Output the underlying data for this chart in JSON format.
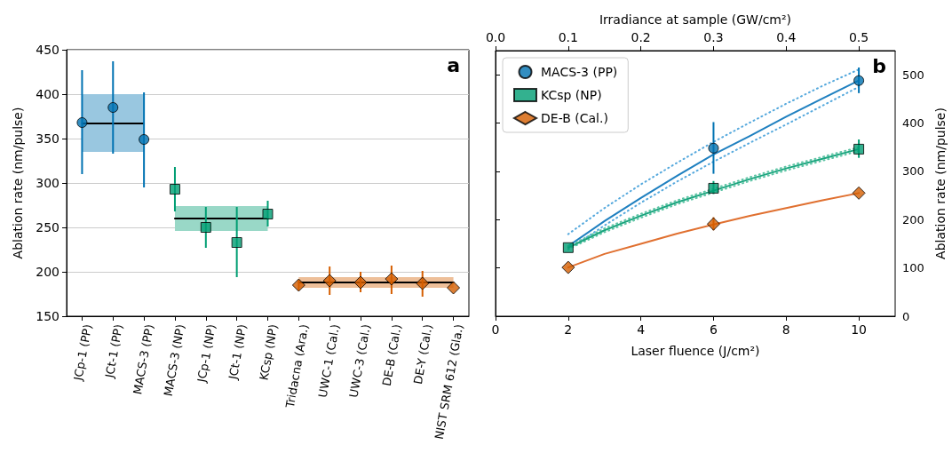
{
  "chart_data": [
    {
      "type": "scatter",
      "ylabel": "Ablation rate (nm/pulse)",
      "categories": [
        "JCp-1 (PP)",
        "JCt-1 (PP)",
        "MACS-3 (PP)",
        "MACS-3 (NP)",
        "JCp-1 (NP)",
        "JCt-1 (NP)",
        "KCsp (NP)",
        "Tridacna (Ara.)",
        "UWC-1 (Cal.)",
        "UWC-3 (Cal.)",
        "DE-B (Cal.)",
        "DE-Y (Cal.)",
        "NIST SRM 612 (Gla.)"
      ],
      "ylim": [
        150,
        450
      ],
      "yticks": [
        150,
        200,
        250,
        300,
        350,
        400,
        450
      ],
      "grid": "y",
      "legend": false,
      "annotations": [
        "a"
      ],
      "series": [
        {
          "marker": "circle",
          "color": "#0072b2",
          "x": [
            "JCp-1 (PP)",
            "JCt-1 (PP)",
            "MACS-3 (PP)"
          ],
          "values": [
            368,
            385,
            349
          ],
          "errors": [
            [
              310,
              427
            ],
            [
              333,
              437
            ],
            [
              295,
              402
            ]
          ]
        },
        {
          "type": "line",
          "marker": "none",
          "color": "#000000",
          "x": [
            "JCp-1 (PP)",
            "MACS-3 (PP)"
          ],
          "values": [
            367,
            367
          ],
          "lower": [
            335,
            335
          ],
          "upper": [
            400,
            400
          ]
        },
        {
          "marker": "square",
          "color": "#009e73",
          "x": [
            "MACS-3 (NP)",
            "JCp-1 (NP)",
            "JCt-1 (NP)",
            "KCsp (NP)"
          ],
          "values": [
            293,
            250,
            233,
            265
          ],
          "errors": [
            [
              268,
              318
            ],
            [
              227,
              273
            ],
            [
              194,
              273
            ],
            [
              251,
              280
            ]
          ]
        },
        {
          "type": "line",
          "marker": "none",
          "color": "#000000",
          "x": [
            "MACS-3 (NP)",
            "KCsp (NP)"
          ],
          "values": [
            260,
            260
          ],
          "lower": [
            246,
            246
          ],
          "upper": [
            274,
            274
          ]
        },
        {
          "marker": "diamond",
          "color": "#d55e00",
          "x": [
            "Tridacna (Ara.)",
            "UWC-1 (Cal.)",
            "UWC-3 (Cal.)",
            "DE-B (Cal.)",
            "DE-Y (Cal.)",
            "NIST SRM 612 (Gla.)"
          ],
          "values": [
            185,
            190,
            188,
            192,
            187,
            182
          ],
          "errors": [
            [
              179,
              191
            ],
            [
              174,
              206
            ],
            [
              177,
              200
            ],
            [
              175,
              207
            ],
            [
              172,
              201
            ],
            null
          ]
        },
        {
          "type": "line",
          "marker": "none",
          "color": "#000000",
          "x": [
            "Tridacna (Ara.)",
            "NIST SRM 612 (Gla.)"
          ],
          "values": [
            188,
            188
          ],
          "lower": [
            182,
            182
          ],
          "upper": [
            194,
            194
          ]
        }
      ]
    },
    {
      "type": "scatter",
      "xlabel": "Laser fluence (J/cm²)",
      "x2label": "Irradiance at sample (GW/cm²)",
      "y2label": "Ablation rate (nm/pulse)",
      "xlim": [
        0,
        11
      ],
      "xticks": [
        0,
        2,
        4,
        6,
        8,
        10
      ],
      "x2lim": [
        0,
        0.55
      ],
      "x2ticks": [
        {
          "value": 0,
          "label": "0.0"
        },
        {
          "value": 0.1,
          "label": "0.1"
        },
        {
          "value": 0.2,
          "label": "0.2"
        },
        {
          "value": 0.3,
          "label": "0.3"
        },
        {
          "value": 0.4,
          "label": "0.4"
        },
        {
          "value": 0.5,
          "label": "0.5"
        }
      ],
      "y2lim": [
        0,
        550
      ],
      "y2ticks": [
        0,
        100,
        200,
        300,
        400,
        500
      ],
      "grid": false,
      "legend": "top left",
      "annotations": [
        "b"
      ],
      "series": [
        {
          "type": "line",
          "axis": "y2",
          "marker": "none",
          "line_style": "dotted",
          "color": "#56a9dd",
          "x": [
            2,
            3,
            4,
            5,
            6,
            7,
            8,
            9,
            10
          ],
          "values": [
            170,
            224,
            273,
            318,
            361,
            401,
            440,
            477,
            511
          ]
        },
        {
          "type": "line",
          "axis": "y2",
          "marker": "none",
          "line_style": "dotted",
          "color": "#56a9dd",
          "x": [
            2,
            3,
            4,
            5,
            6,
            7,
            8,
            9,
            10
          ],
          "values": [
            138,
            188,
            235,
            279,
            320,
            359,
            397,
            436,
            475
          ]
        },
        {
          "type": "line",
          "axis": "y2",
          "marker": "none",
          "line_style": "solid",
          "color": "#1f80c0",
          "x": [
            2,
            3,
            4,
            5,
            6,
            7,
            8,
            9,
            10
          ],
          "values": [
            145,
            197,
            245,
            291,
            335,
            373,
            413,
            451,
            488
          ]
        },
        {
          "type": "line",
          "axis": "y2",
          "marker": "none",
          "line_style": "dotted",
          "color": "#5cc4a4",
          "x": [
            2,
            3,
            4,
            5,
            6,
            7,
            8,
            9,
            10
          ],
          "values": [
            145,
            182,
            212,
            240,
            264,
            288,
            310,
            330,
            350
          ]
        },
        {
          "type": "line",
          "axis": "y2",
          "marker": "none",
          "line_style": "dotted",
          "color": "#5cc4a4",
          "x": [
            2,
            3,
            4,
            5,
            6,
            7,
            8,
            9,
            10
          ],
          "values": [
            139,
            174,
            204,
            232,
            256,
            280,
            302,
            322,
            342
          ]
        },
        {
          "type": "line",
          "axis": "y2",
          "marker": "none",
          "line_style": "solid",
          "color": "#1aa57e",
          "x": [
            2,
            3,
            4,
            5,
            6,
            7,
            8,
            9,
            10
          ],
          "values": [
            142,
            178,
            208,
            236,
            260,
            284,
            306,
            326,
            346
          ]
        },
        {
          "type": "line",
          "axis": "y2",
          "marker": "none",
          "line_style": "solid",
          "color": "#e07030",
          "x": [
            2,
            3,
            4,
            5,
            6,
            7,
            8,
            9,
            10
          ],
          "values": [
            101,
            129,
            150,
            171,
            190,
            208,
            224,
            240,
            255
          ]
        },
        {
          "axis": "y2",
          "name": "MACS-3 (PP)",
          "marker": "circle",
          "color": "#0072b2",
          "x": [
            6,
            10
          ],
          "values": [
            348,
            488
          ],
          "errors": [
            [
              295,
              402
            ],
            [
              462,
              515
            ]
          ]
        },
        {
          "axis": "y2",
          "name": "KCsp (NP)",
          "marker": "square",
          "color": "#009e73",
          "x": [
            2,
            6,
            10
          ],
          "values": [
            142,
            265,
            346
          ],
          "errors": [
            null,
            [
              253,
              280
            ],
            [
              328,
              366
            ]
          ]
        },
        {
          "axis": "y2",
          "name": "DE-B (Cal.)",
          "marker": "diamond",
          "color": "#d55e00",
          "x": [
            2,
            6,
            10
          ],
          "values": [
            101,
            191,
            255
          ],
          "errors": [
            null,
            [
              178,
              205
            ],
            null
          ]
        }
      ]
    }
  ]
}
